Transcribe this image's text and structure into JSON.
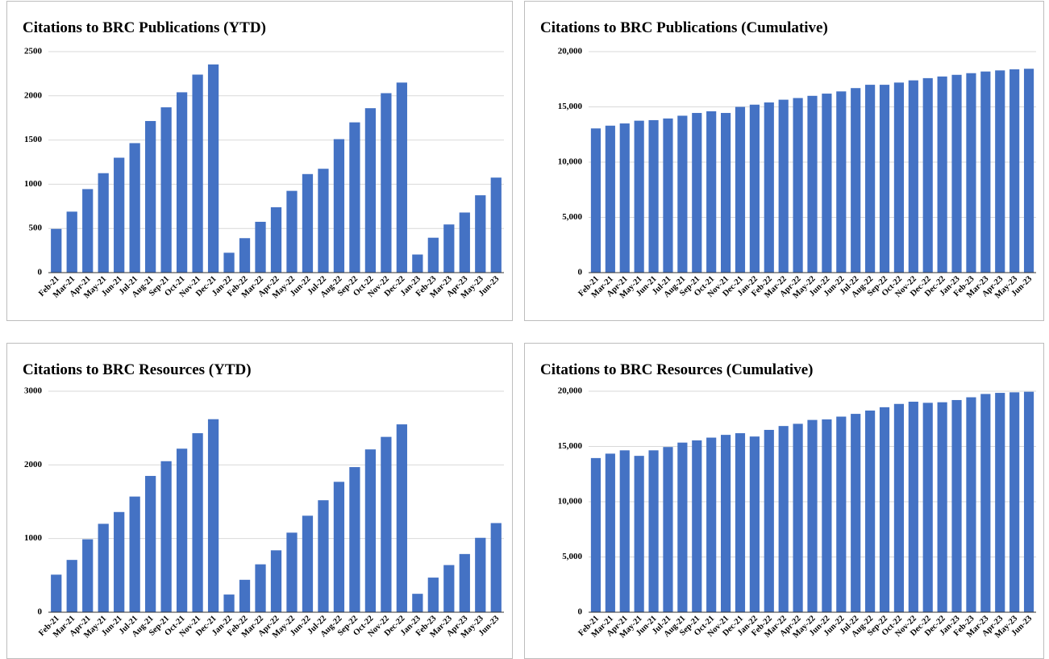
{
  "chart_data": [
    {
      "type": "bar",
      "title": "Citations to BRC Publications (YTD)",
      "categories": [
        "Feb-21",
        "Mar-21",
        "Apr-21",
        "May-21",
        "Jun-21",
        "Jul-21",
        "Aug-21",
        "Sep-21",
        "Oct-21",
        "Nov-21",
        "Dec-21",
        "Jan-22",
        "Feb-22",
        "Mar-22",
        "Apr-22",
        "May-22",
        "Jun-22",
        "Jul-22",
        "Aug-22",
        "Sep-22",
        "Oct-22",
        "Nov-22",
        "Dec-22",
        "Jan-23",
        "Feb-23",
        "Mar-23",
        "Apr-23",
        "May-23",
        "Jun-23"
      ],
      "values": [
        495,
        690,
        945,
        1125,
        1300,
        1465,
        1715,
        1870,
        2040,
        2240,
        2355,
        225,
        390,
        575,
        740,
        925,
        1115,
        1175,
        1510,
        1700,
        1860,
        2030,
        2150,
        205,
        395,
        545,
        680,
        875,
        1075
      ],
      "color": "#4472c4",
      "ylim": [
        0,
        2500
      ],
      "yticks": [
        0,
        500,
        1000,
        1500,
        2000,
        2500
      ],
      "grid": true
    },
    {
      "type": "bar",
      "title": "Citations to BRC Publications (Cumulative)",
      "categories": [
        "Feb-21",
        "Mar-21",
        "Apr-21",
        "May-21",
        "Jun-21",
        "Jul-21",
        "Aug-21",
        "Sep-21",
        "Oct-21",
        "Nov-21",
        "Dec-21",
        "Jan-22",
        "Feb-22",
        "Mar-22",
        "Apr-22",
        "May-22",
        "Jun-22",
        "Jun-22",
        "Jul-22",
        "Aug-22",
        "Sep-22",
        "Oct-22",
        "Nov-22",
        "Dec-22",
        "Dec-22",
        "Jan-23",
        "Feb-23",
        "Mar-23",
        "Apr-23",
        "May-23",
        "Jun-23"
      ],
      "values": [
        13050,
        13300,
        13500,
        13750,
        13800,
        13950,
        14200,
        14450,
        14600,
        14450,
        15000,
        15200,
        15400,
        15650,
        15800,
        16000,
        16200,
        16400,
        16700,
        17000,
        17000,
        17200,
        17400,
        17600,
        17750,
        17900,
        18050,
        18200,
        18300,
        18400,
        18450
      ],
      "color": "#4472c4",
      "ylim": [
        0,
        20000
      ],
      "yticks": [
        0,
        {
          "value": 5000,
          "label": "5,000"
        },
        {
          "value": 10000,
          "label": "10,000"
        },
        {
          "value": 15000,
          "label": "15,000"
        },
        {
          "value": 20000,
          "label": "20,000"
        }
      ],
      "grid": true
    },
    {
      "type": "bar",
      "title": "Citations to BRC Resources (YTD)",
      "categories": [
        "Feb-21",
        "Mar-21",
        "Apr-21",
        "May-21",
        "Jun-21",
        "Jul-21",
        "Aug-21",
        "Sep-21",
        "Oct-21",
        "Nov-21",
        "Dec-21",
        "Jan-22",
        "Feb-22",
        "Mar-22",
        "Apr-22",
        "May-22",
        "Jun-22",
        "Jul-22",
        "Aug-22",
        "Sep-22",
        "Oct-22",
        "Nov-22",
        "Dec-22",
        "Jan-23",
        "Feb-23",
        "Mar-23",
        "Apr-23",
        "May-23",
        "Jun-23"
      ],
      "values": [
        510,
        710,
        990,
        1200,
        1360,
        1570,
        1850,
        2050,
        2220,
        2430,
        2620,
        240,
        440,
        650,
        840,
        1080,
        1310,
        1520,
        1770,
        1970,
        2210,
        2380,
        2550,
        250,
        470,
        640,
        790,
        1010,
        1210
      ],
      "color": "#4472c4",
      "ylim": [
        0,
        3000
      ],
      "yticks": [
        0,
        1000,
        2000,
        3000
      ],
      "grid": true
    },
    {
      "type": "bar",
      "title": "Citations to BRC Resources (Cumulative)",
      "categories": [
        "Feb-21",
        "Mar-21",
        "Apr-21",
        "May-21",
        "Jun-21",
        "Jul-21",
        "Aug-21",
        "Sep-21",
        "Oct-21",
        "Nov-21",
        "Dec-21",
        "Jan-22",
        "Feb-22",
        "Mar-22",
        "Apr-22",
        "May-22",
        "Jun-22",
        "Jun-22",
        "Jul-22",
        "Aug-22",
        "Sep-22",
        "Oct-22",
        "Nov-22",
        "Dec-22",
        "Dec-22",
        "Jan-23",
        "Feb-23",
        "Mar-23",
        "Apr-23",
        "May-23",
        "Jun-23"
      ],
      "values": [
        13950,
        14350,
        14650,
        14150,
        14650,
        14950,
        15350,
        15550,
        15800,
        16050,
        16200,
        15900,
        16500,
        16850,
        17050,
        17400,
        17450,
        17700,
        17950,
        18250,
        18550,
        18850,
        19050,
        18950,
        19000,
        19200,
        19450,
        19750,
        19850,
        19900,
        19950
      ],
      "color": "#4472c4",
      "ylim": [
        0,
        20000
      ],
      "yticks": [
        0,
        {
          "value": 5000,
          "label": "5,000"
        },
        {
          "value": 10000,
          "label": "10,000"
        },
        {
          "value": 15000,
          "label": "15,000"
        },
        {
          "value": 20000,
          "label": "20,000"
        }
      ],
      "grid": true
    }
  ]
}
